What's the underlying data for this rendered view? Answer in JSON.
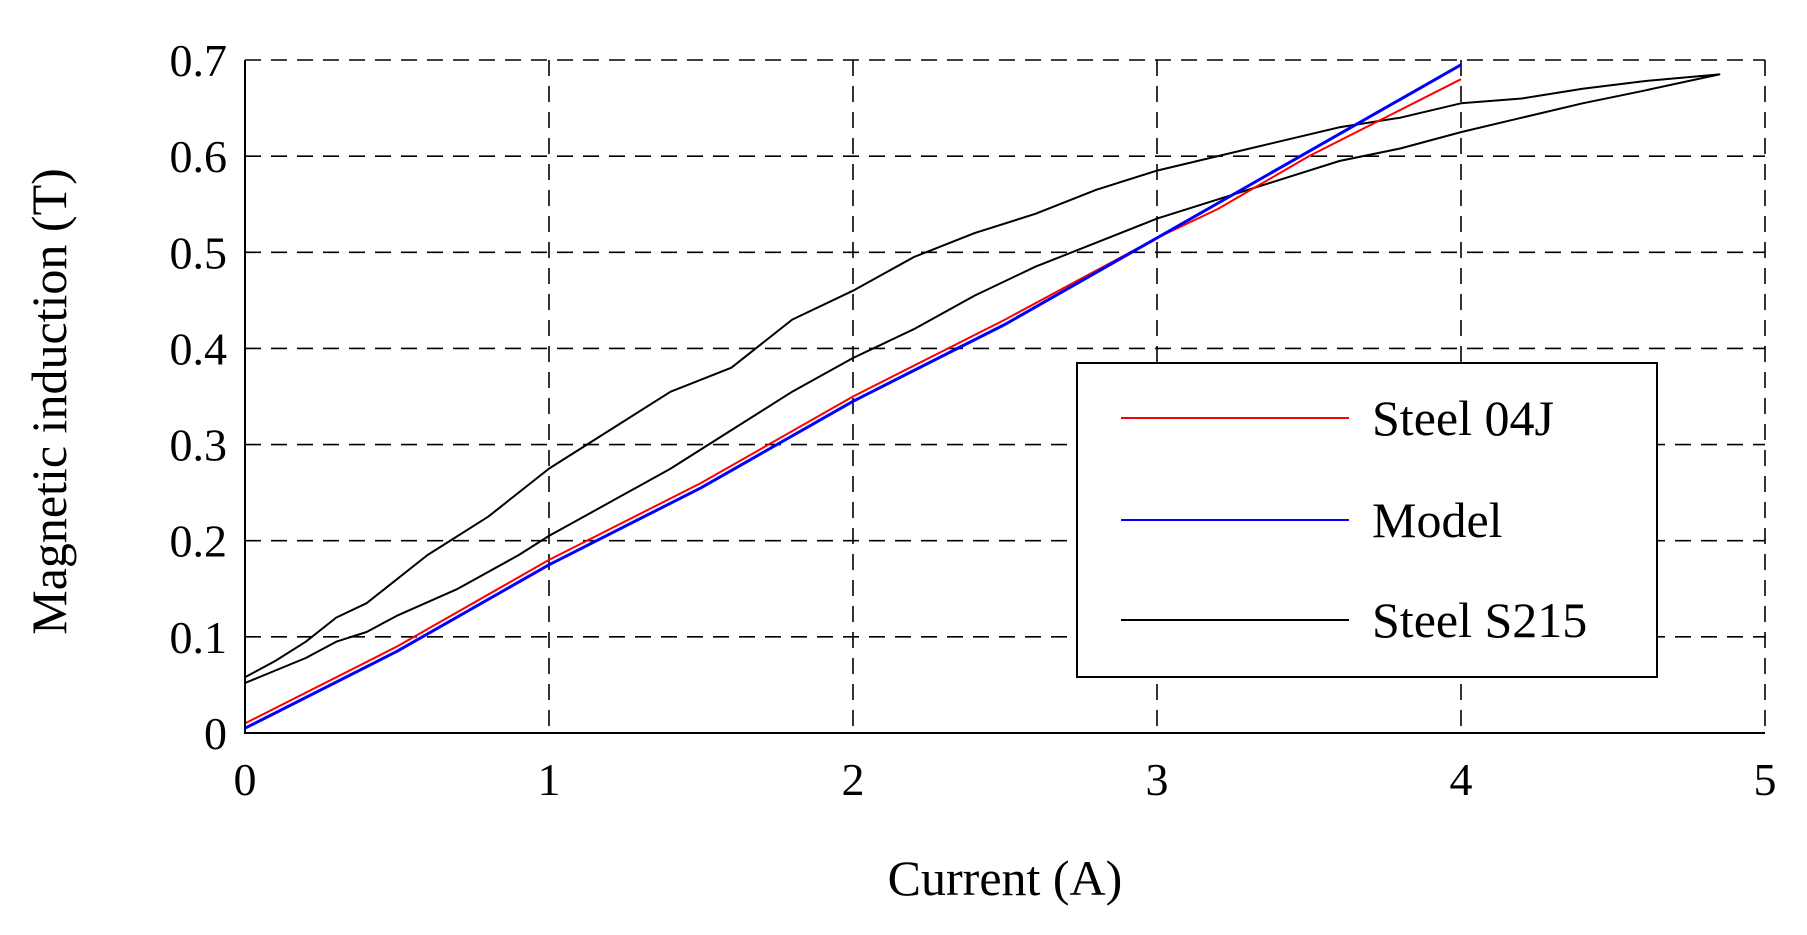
{
  "chart_data": {
    "type": "line",
    "xlabel": "Current (A)",
    "ylabel": "Magnetic induction (T)",
    "xlim": [
      0,
      5
    ],
    "ylim": [
      0,
      0.7
    ],
    "xticks": [
      0,
      1,
      2,
      3,
      4,
      5
    ],
    "yticks": [
      0,
      0.1,
      0.2,
      0.3,
      0.4,
      0.5,
      0.6,
      0.7
    ],
    "grid": true,
    "legend_position": "lower-right",
    "series": [
      {
        "name": "Steel 04J",
        "color": "#ff0000",
        "x": [
          0,
          0.5,
          1.0,
          1.5,
          2.0,
          2.5,
          3.0,
          3.2,
          3.5,
          4.0
        ],
        "y": [
          0.01,
          0.09,
          0.18,
          0.26,
          0.35,
          0.43,
          0.515,
          0.545,
          0.6,
          0.68
        ]
      },
      {
        "name": "Model",
        "color": "#0000ff",
        "x": [
          0,
          0.5,
          1.0,
          1.5,
          2.0,
          2.5,
          3.0,
          3.5,
          4.0
        ],
        "y": [
          0.005,
          0.085,
          0.175,
          0.255,
          0.345,
          0.425,
          0.515,
          0.605,
          0.695
        ]
      },
      {
        "name": "Steel S215",
        "color": "#000000",
        "x": [
          0,
          0.1,
          0.2,
          0.3,
          0.4,
          0.5,
          0.7,
          0.9,
          1.0,
          1.2,
          1.4,
          1.6,
          1.8,
          2.0,
          2.2,
          2.4,
          2.6,
          2.8,
          3.0,
          3.2,
          3.4,
          3.6,
          3.8,
          4.0,
          4.2,
          4.4,
          4.6,
          4.85,
          4.85,
          4.6,
          4.4,
          4.2,
          4.0,
          3.8,
          3.6,
          3.4,
          3.2,
          3.0,
          2.8,
          2.6,
          2.4,
          2.2,
          2.0,
          1.8,
          1.6,
          1.4,
          1.2,
          1.0,
          0.8,
          0.6,
          0.4,
          0.3,
          0.2,
          0.1,
          0
        ],
        "y": [
          0.052,
          0.065,
          0.078,
          0.095,
          0.105,
          0.122,
          0.15,
          0.185,
          0.205,
          0.24,
          0.275,
          0.315,
          0.355,
          0.39,
          0.42,
          0.455,
          0.485,
          0.51,
          0.535,
          0.555,
          0.575,
          0.595,
          0.608,
          0.625,
          0.64,
          0.655,
          0.668,
          0.685,
          0.685,
          0.678,
          0.67,
          0.66,
          0.655,
          0.64,
          0.63,
          0.615,
          0.6,
          0.585,
          0.565,
          0.54,
          0.52,
          0.495,
          0.46,
          0.43,
          0.38,
          0.355,
          0.315,
          0.275,
          0.225,
          0.185,
          0.135,
          0.12,
          0.095,
          0.075,
          0.058
        ]
      }
    ]
  }
}
